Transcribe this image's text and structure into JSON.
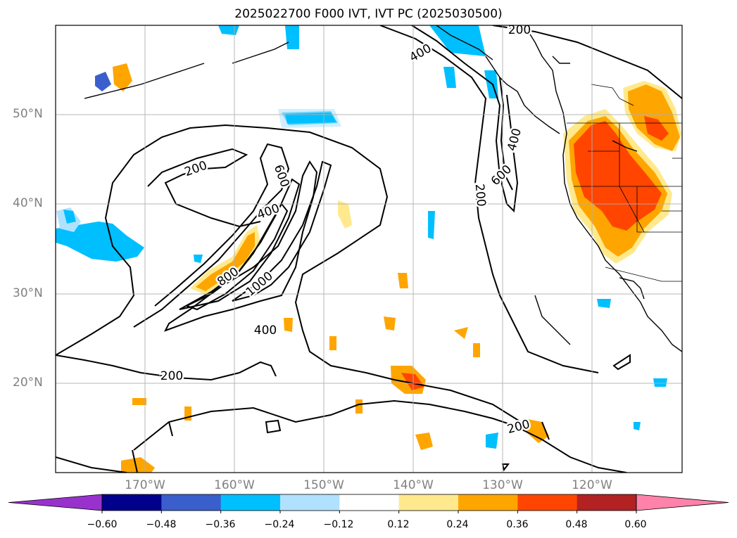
{
  "title": "2025022700 F000 IVT, IVT PC (2025030500)",
  "lat_labels": [
    "50°N",
    "40°N",
    "30°N",
    "20°N"
  ],
  "lon_labels": [
    "170°W",
    "160°W",
    "150°W",
    "140°W",
    "130°W",
    "120°W"
  ],
  "contour_labels": [
    "200",
    "400",
    "200",
    "600",
    "400",
    "800",
    "1000",
    "400",
    "200",
    "200",
    "600",
    "400",
    "200"
  ],
  "colorbar": {
    "ticks": [
      "−0.60",
      "−0.48",
      "−0.36",
      "−0.24",
      "−0.12",
      "0.12",
      "0.24",
      "0.36",
      "0.48",
      "0.60"
    ],
    "colors": [
      "#9932cc",
      "#00008b",
      "#3a5fcd",
      "#00bfff",
      "#b0e2ff",
      "#ffffff",
      "#ffe98c",
      "#ffa500",
      "#ff4500",
      "#b22222",
      "#ff82ab"
    ]
  }
}
